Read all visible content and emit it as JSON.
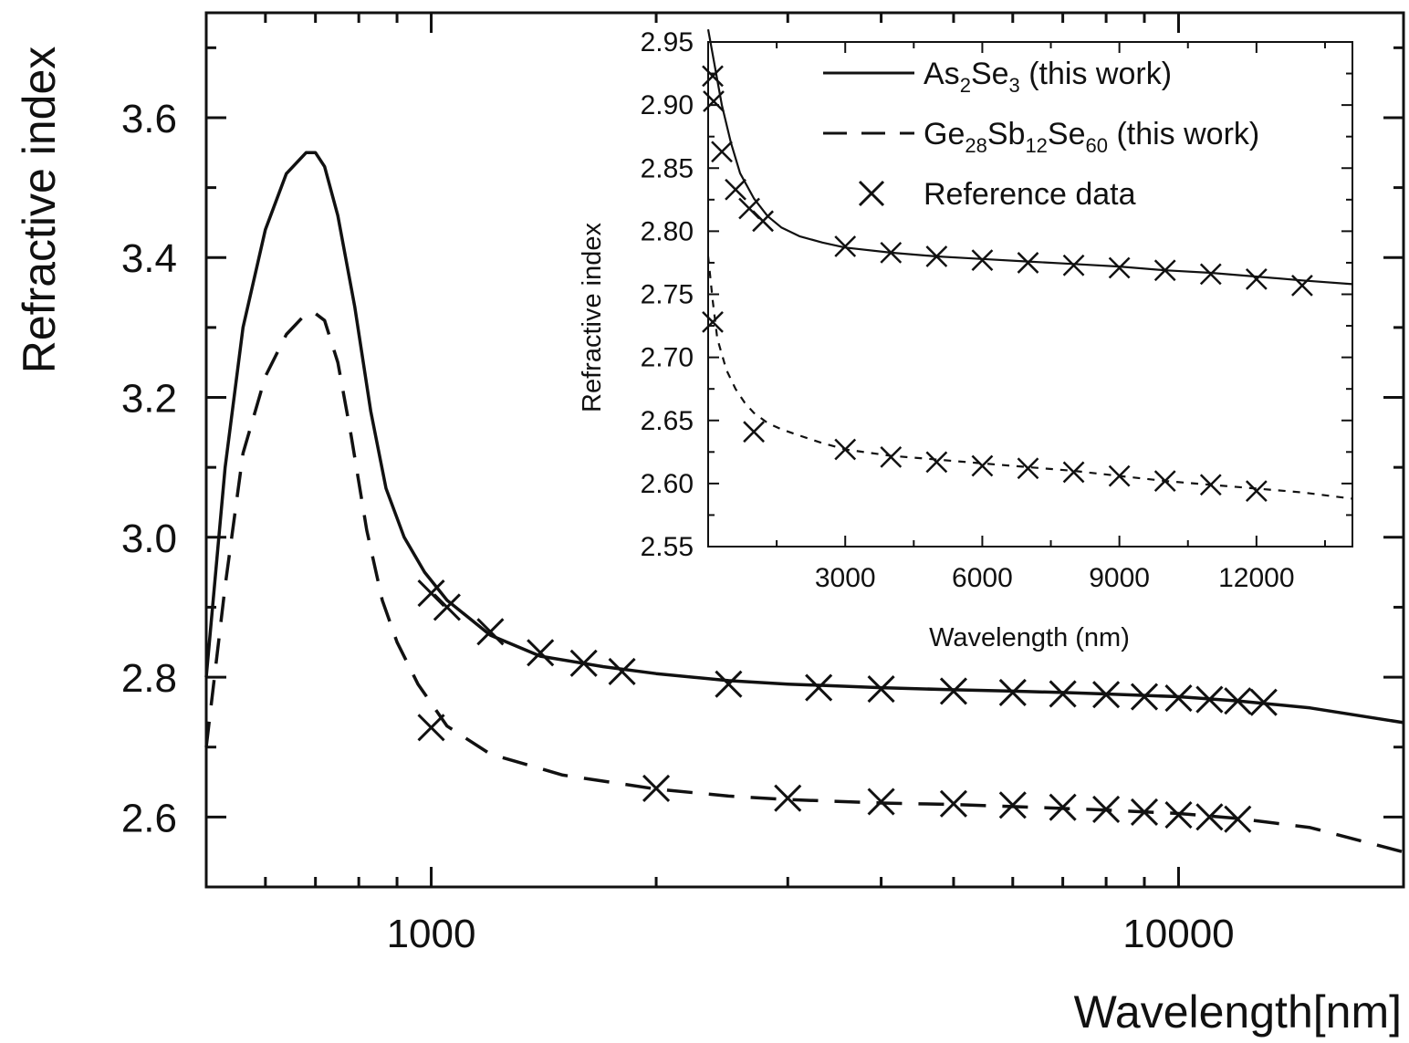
{
  "chart_data": [
    {
      "id": "main",
      "type": "line",
      "xlabel": "Wavelength[nm]",
      "ylabel": "Refractive index",
      "xscale": "log",
      "xlim": [
        500,
        20000
      ],
      "ylim": [
        2.5,
        3.75
      ],
      "x_tick_labels": [
        "1000",
        "10000"
      ],
      "x_tick_values": [
        1000,
        10000
      ],
      "y_ticks": [
        "2.6",
        "2.8",
        "3.0",
        "3.2",
        "3.4",
        "3.6"
      ],
      "y_tick_values": [
        2.6,
        2.8,
        3.0,
        3.2,
        3.4,
        3.6
      ],
      "grid": false,
      "series": [
        {
          "name": "As2Se3 (this work)",
          "style": "solid",
          "x": [
            500,
            530,
            560,
            600,
            640,
            680,
            700,
            720,
            750,
            790,
            830,
            870,
            920,
            980,
            1050,
            1200,
            1400,
            1700,
            2000,
            2500,
            3000,
            4000,
            5000,
            6000,
            7000,
            8000,
            10000,
            12000,
            15000,
            20000
          ],
          "y": [
            2.8,
            3.1,
            3.3,
            3.44,
            3.52,
            3.55,
            3.55,
            3.53,
            3.46,
            3.33,
            3.18,
            3.07,
            3.0,
            2.95,
            2.91,
            2.86,
            2.83,
            2.815,
            2.805,
            2.795,
            2.79,
            2.785,
            2.782,
            2.78,
            2.778,
            2.776,
            2.772,
            2.766,
            2.756,
            2.735
          ]
        },
        {
          "name": "Ge28Sb12Se60 (this work)",
          "style": "dashed",
          "x": [
            500,
            530,
            560,
            600,
            640,
            680,
            700,
            720,
            750,
            780,
            820,
            860,
            900,
            960,
            1050,
            1200,
            1500,
            2000,
            2500,
            3000,
            4000,
            5000,
            6000,
            8000,
            10000,
            12000,
            15000,
            20000
          ],
          "y": [
            2.7,
            2.93,
            3.12,
            3.23,
            3.29,
            3.32,
            3.32,
            3.31,
            3.25,
            3.15,
            3.01,
            2.91,
            2.85,
            2.79,
            2.73,
            2.69,
            2.66,
            2.64,
            2.63,
            2.625,
            2.62,
            2.618,
            2.615,
            2.61,
            2.605,
            2.598,
            2.585,
            2.55
          ]
        },
        {
          "name": "Reference data",
          "style": "markers",
          "marker": "x",
          "x": [
            1000,
            1050,
            1200,
            1400,
            1600,
            1800,
            2500,
            3300,
            4000,
            5000,
            6000,
            7000,
            8000,
            9000,
            10000,
            11000,
            12000,
            13000
          ],
          "y": [
            2.92,
            2.9,
            2.865,
            2.835,
            2.82,
            2.808,
            2.79,
            2.785,
            2.783,
            2.78,
            2.778,
            2.776,
            2.775,
            2.772,
            2.77,
            2.768,
            2.766,
            2.764
          ]
        },
        {
          "name": "Reference data",
          "style": "markers",
          "marker": "x",
          "x": [
            1000,
            2000,
            3000,
            4000,
            5000,
            6000,
            7000,
            8000,
            9000,
            10000,
            11000,
            12000
          ],
          "y": [
            2.728,
            2.641,
            2.627,
            2.622,
            2.619,
            2.617,
            2.614,
            2.611,
            2.607,
            2.603,
            2.6,
            2.597
          ]
        }
      ]
    },
    {
      "id": "inset",
      "type": "line",
      "xlabel": "Wavelength (nm)",
      "ylabel": "Refractive index",
      "xscale": "linear",
      "xlim": [
        0,
        14100
      ],
      "ylim": [
        2.55,
        2.95
      ],
      "x_ticks": [
        "3000",
        "6000",
        "9000",
        "12000"
      ],
      "x_tick_values": [
        3000,
        6000,
        9000,
        12000
      ],
      "y_ticks": [
        "2.55",
        "2.60",
        "2.65",
        "2.70",
        "2.75",
        "2.80",
        "2.85",
        "2.90",
        "2.95"
      ],
      "y_tick_values": [
        2.55,
        2.6,
        2.65,
        2.7,
        2.75,
        2.8,
        2.85,
        2.9,
        2.95
      ],
      "grid": false,
      "legend_position": "top-right",
      "legend": [
        {
          "style": "solid",
          "parts": [
            [
              "As",
              ""
            ],
            [
              "2",
              "sub"
            ],
            [
              "Se",
              ""
            ],
            [
              "3",
              "sub"
            ],
            [
              " (this work)",
              ""
            ]
          ]
        },
        {
          "style": "dashed",
          "parts": [
            [
              "Ge",
              ""
            ],
            [
              "28",
              "sub"
            ],
            [
              "Sb",
              ""
            ],
            [
              "12",
              "sub"
            ],
            [
              "Se",
              ""
            ],
            [
              "60",
              "sub"
            ],
            [
              " (this work)",
              ""
            ]
          ]
        },
        {
          "style": "markers",
          "parts": [
            [
              "Reference data",
              ""
            ]
          ]
        }
      ],
      "series": [
        {
          "name": "As2Se3 (this work)",
          "style": "solid",
          "x": [
            0,
            100,
            200,
            300,
            500,
            700,
            1000,
            1300,
            1600,
            2000,
            2500,
            3000,
            4000,
            5000,
            6000,
            7000,
            8000,
            9000,
            10000,
            11000,
            12000,
            13000,
            14100
          ],
          "y": [
            2.96,
            2.94,
            2.92,
            2.9,
            2.87,
            2.846,
            2.826,
            2.812,
            2.803,
            2.796,
            2.791,
            2.787,
            2.783,
            2.78,
            2.778,
            2.776,
            2.774,
            2.772,
            2.769,
            2.767,
            2.764,
            2.761,
            2.758
          ]
        },
        {
          "name": "Ge28Sb12Se60 (this work)",
          "style": "dashed",
          "x": [
            0,
            100,
            200,
            400,
            600,
            800,
            1000,
            1300,
            1600,
            2000,
            2500,
            3000,
            4000,
            5000,
            6000,
            7000,
            8000,
            9000,
            10000,
            11000,
            12000,
            13000,
            14100
          ],
          "y": [
            2.78,
            2.745,
            2.715,
            2.69,
            2.675,
            2.664,
            2.656,
            2.648,
            2.643,
            2.638,
            2.632,
            2.627,
            2.622,
            2.619,
            2.616,
            2.613,
            2.61,
            2.606,
            2.602,
            2.599,
            2.596,
            2.593,
            2.588
          ]
        },
        {
          "name": "Reference data",
          "style": "markers",
          "marker": "x",
          "x": [
            100,
            120,
            300,
            600,
            900,
            1200,
            3000,
            4000,
            5000,
            6000,
            7000,
            8000,
            9000,
            10000,
            11000,
            12000,
            13000
          ],
          "y": [
            2.923,
            2.903,
            2.863,
            2.833,
            2.818,
            2.808,
            2.788,
            2.783,
            2.78,
            2.777,
            2.775,
            2.773,
            2.771,
            2.769,
            2.766,
            2.762,
            2.757
          ]
        },
        {
          "name": "Reference data",
          "style": "markers",
          "marker": "x",
          "x": [
            100,
            1000,
            3000,
            4000,
            5000,
            6000,
            7000,
            8000,
            9000,
            10000,
            11000,
            12000
          ],
          "y": [
            2.728,
            2.641,
            2.627,
            2.621,
            2.617,
            2.614,
            2.612,
            2.609,
            2.606,
            2.602,
            2.599,
            2.594
          ]
        }
      ]
    }
  ]
}
